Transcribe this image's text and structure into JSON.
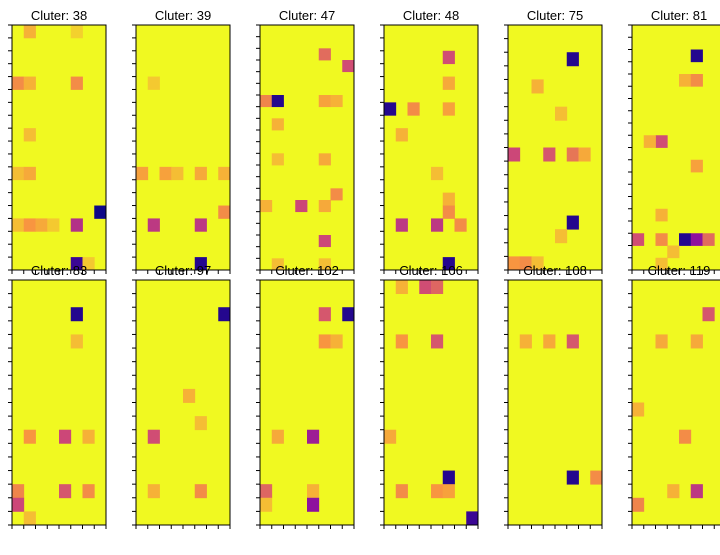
{
  "figure": {
    "colormap": "plasma",
    "background": "#ffffff",
    "frame_color": "#000000"
  },
  "chart_data": {
    "type": "heatmap",
    "rows": 18,
    "cols": 8,
    "grid": false,
    "colormap": [
      "#0d0887",
      "#7e03a8",
      "#cc4778",
      "#f89540",
      "#f0f921"
    ],
    "panels": [
      {
        "title": "Cluter: 38",
        "hot": [
          [
            0,
            1,
            0.82
          ],
          [
            0,
            5,
            0.9
          ],
          [
            4,
            0,
            0.72
          ],
          [
            4,
            1,
            0.82
          ],
          [
            4,
            5,
            0.72
          ],
          [
            8,
            1,
            0.85
          ],
          [
            11,
            0,
            0.85
          ],
          [
            11,
            1,
            0.8
          ],
          [
            15,
            0,
            0.85
          ],
          [
            15,
            1,
            0.75
          ],
          [
            15,
            2,
            0.8
          ],
          [
            15,
            3,
            0.88
          ],
          [
            15,
            5,
            0.42
          ],
          [
            14,
            7,
            0.0
          ],
          [
            18,
            5,
            0.1
          ],
          [
            18,
            6,
            0.88
          ]
        ]
      },
      {
        "title": "Cluter: 39",
        "hot": [
          [
            4,
            1,
            0.88
          ],
          [
            11,
            0,
            0.78
          ],
          [
            11,
            2,
            0.78
          ],
          [
            11,
            3,
            0.85
          ],
          [
            11,
            5,
            0.8
          ],
          [
            11,
            7,
            0.82
          ],
          [
            15,
            1,
            0.45
          ],
          [
            15,
            5,
            0.45
          ],
          [
            14,
            7,
            0.72
          ],
          [
            18,
            5,
            0.05
          ]
        ]
      },
      {
        "title": "Cluter: 47",
        "hot": [
          [
            2,
            5,
            0.62
          ],
          [
            3,
            7,
            0.52
          ],
          [
            6,
            0,
            0.7
          ],
          [
            6,
            1,
            0.05
          ],
          [
            6,
            5,
            0.78
          ],
          [
            6,
            6,
            0.82
          ],
          [
            8,
            1,
            0.82
          ],
          [
            11,
            1,
            0.85
          ],
          [
            11,
            5,
            0.8
          ],
          [
            15,
            0,
            0.82
          ],
          [
            15,
            3,
            0.5
          ],
          [
            15,
            5,
            0.8
          ],
          [
            14,
            6,
            0.72
          ],
          [
            18,
            5,
            0.5
          ],
          [
            20,
            1,
            0.85
          ],
          [
            20,
            5,
            0.85
          ]
        ]
      },
      {
        "title": "Cluter: 48",
        "hot": [
          [
            2,
            5,
            0.52
          ],
          [
            4,
            5,
            0.8
          ],
          [
            6,
            0,
            0.05
          ],
          [
            6,
            2,
            0.72
          ],
          [
            6,
            5,
            0.78
          ],
          [
            8,
            1,
            0.82
          ],
          [
            11,
            4,
            0.85
          ],
          [
            13,
            5,
            0.82
          ],
          [
            15,
            1,
            0.45
          ],
          [
            15,
            4,
            0.45
          ],
          [
            14,
            5,
            0.72
          ],
          [
            15,
            6,
            0.72
          ],
          [
            18,
            5,
            0.05
          ]
        ]
      },
      {
        "title": "Cluter: 75",
        "hot": [
          [
            2,
            5,
            0.05
          ],
          [
            4,
            2,
            0.82
          ],
          [
            6,
            4,
            0.85
          ],
          [
            9,
            0,
            0.5
          ],
          [
            9,
            3,
            0.55
          ],
          [
            9,
            5,
            0.65
          ],
          [
            9,
            6,
            0.8
          ],
          [
            14,
            5,
            0.05
          ],
          [
            15,
            4,
            0.85
          ],
          [
            17,
            0,
            0.75
          ],
          [
            17,
            1,
            0.72
          ],
          [
            17,
            2,
            0.85
          ]
        ]
      },
      {
        "title": "Cluter: 81",
        "hot": [
          [
            2,
            5,
            0.05
          ],
          [
            4,
            4,
            0.82
          ],
          [
            4,
            5,
            0.72
          ],
          [
            9,
            2,
            0.52
          ],
          [
            9,
            1,
            0.82
          ],
          [
            11,
            5,
            0.78
          ],
          [
            15,
            2,
            0.82
          ],
          [
            17,
            0,
            0.52
          ],
          [
            17,
            2,
            0.72
          ],
          [
            17,
            4,
            0.05
          ],
          [
            17,
            5,
            0.3
          ],
          [
            17,
            6,
            0.62
          ],
          [
            18,
            3,
            0.85
          ],
          [
            19,
            2,
            0.85
          ]
        ]
      },
      {
        "title": "Cluter: 83",
        "hot": [
          [
            2,
            5,
            0.05
          ],
          [
            4,
            5,
            0.85
          ],
          [
            11,
            1,
            0.75
          ],
          [
            11,
            4,
            0.5
          ],
          [
            11,
            6,
            0.82
          ],
          [
            15,
            0,
            0.7
          ],
          [
            15,
            4,
            0.55
          ],
          [
            16,
            0,
            0.5
          ],
          [
            15,
            6,
            0.72
          ],
          [
            17,
            1,
            0.85
          ]
        ]
      },
      {
        "title": "Cluter: 97",
        "hot": [
          [
            2,
            7,
            0.05
          ],
          [
            8,
            4,
            0.82
          ],
          [
            10,
            5,
            0.85
          ],
          [
            11,
            1,
            0.52
          ],
          [
            15,
            5,
            0.72
          ],
          [
            15,
            1,
            0.82
          ]
        ]
      },
      {
        "title": "Cluter: 102",
        "hot": [
          [
            2,
            5,
            0.55
          ],
          [
            2,
            7,
            0.05
          ],
          [
            4,
            5,
            0.75
          ],
          [
            4,
            6,
            0.82
          ],
          [
            11,
            1,
            0.8
          ],
          [
            11,
            4,
            0.35
          ],
          [
            15,
            4,
            0.82
          ],
          [
            15,
            0,
            0.6
          ],
          [
            16,
            0,
            0.85
          ],
          [
            16,
            4,
            0.3
          ]
        ]
      },
      {
        "title": "Cluter: 106",
        "hot": [
          [
            0,
            3,
            0.52
          ],
          [
            0,
            4,
            0.6
          ],
          [
            0,
            1,
            0.82
          ],
          [
            4,
            1,
            0.75
          ],
          [
            4,
            4,
            0.55
          ],
          [
            11,
            0,
            0.8
          ],
          [
            14,
            5,
            0.05
          ],
          [
            15,
            1,
            0.72
          ],
          [
            15,
            4,
            0.75
          ],
          [
            15,
            5,
            0.78
          ],
          [
            17,
            7,
            0.1
          ]
        ]
      },
      {
        "title": "Cluter: 108",
        "hot": [
          [
            4,
            5,
            0.55
          ],
          [
            4,
            1,
            0.82
          ],
          [
            4,
            3,
            0.8
          ],
          [
            14,
            5,
            0.05
          ],
          [
            14,
            7,
            0.72
          ]
        ]
      },
      {
        "title": "Cluter: 119",
        "hot": [
          [
            2,
            6,
            0.55
          ],
          [
            4,
            2,
            0.8
          ],
          [
            4,
            5,
            0.8
          ],
          [
            9,
            0,
            0.82
          ],
          [
            11,
            4,
            0.72
          ],
          [
            15,
            5,
            0.45
          ],
          [
            16,
            0,
            0.7
          ],
          [
            15,
            3,
            0.82
          ]
        ]
      }
    ]
  }
}
